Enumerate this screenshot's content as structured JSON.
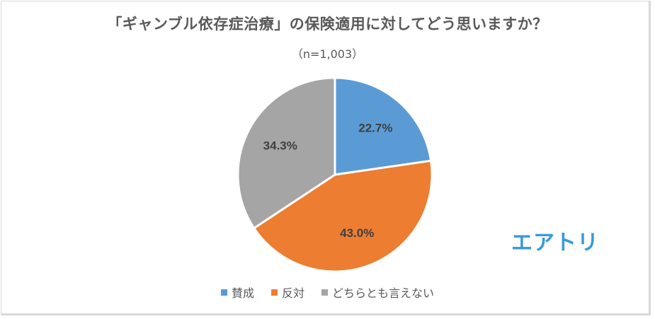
{
  "chart_data": {
    "type": "pie",
    "title": "「ギャンブル依存症治療」の保険適用に対してどう思いますか？",
    "subtitle": "（n=1,003）",
    "categories": [
      "賛成",
      "反対",
      "どちらとも言えない"
    ],
    "values": [
      22.7,
      43.0,
      34.3
    ],
    "labels": [
      "22.7%",
      "43.0%",
      "34.3%"
    ],
    "colors": [
      "#5b9bd5",
      "#ed7d31",
      "#a5a5a5"
    ],
    "start_angle": "12 o'clock, clockwise",
    "legend_position": "bottom"
  },
  "logo": {
    "text": "エアトリ",
    "color": "#3a9ad9"
  }
}
